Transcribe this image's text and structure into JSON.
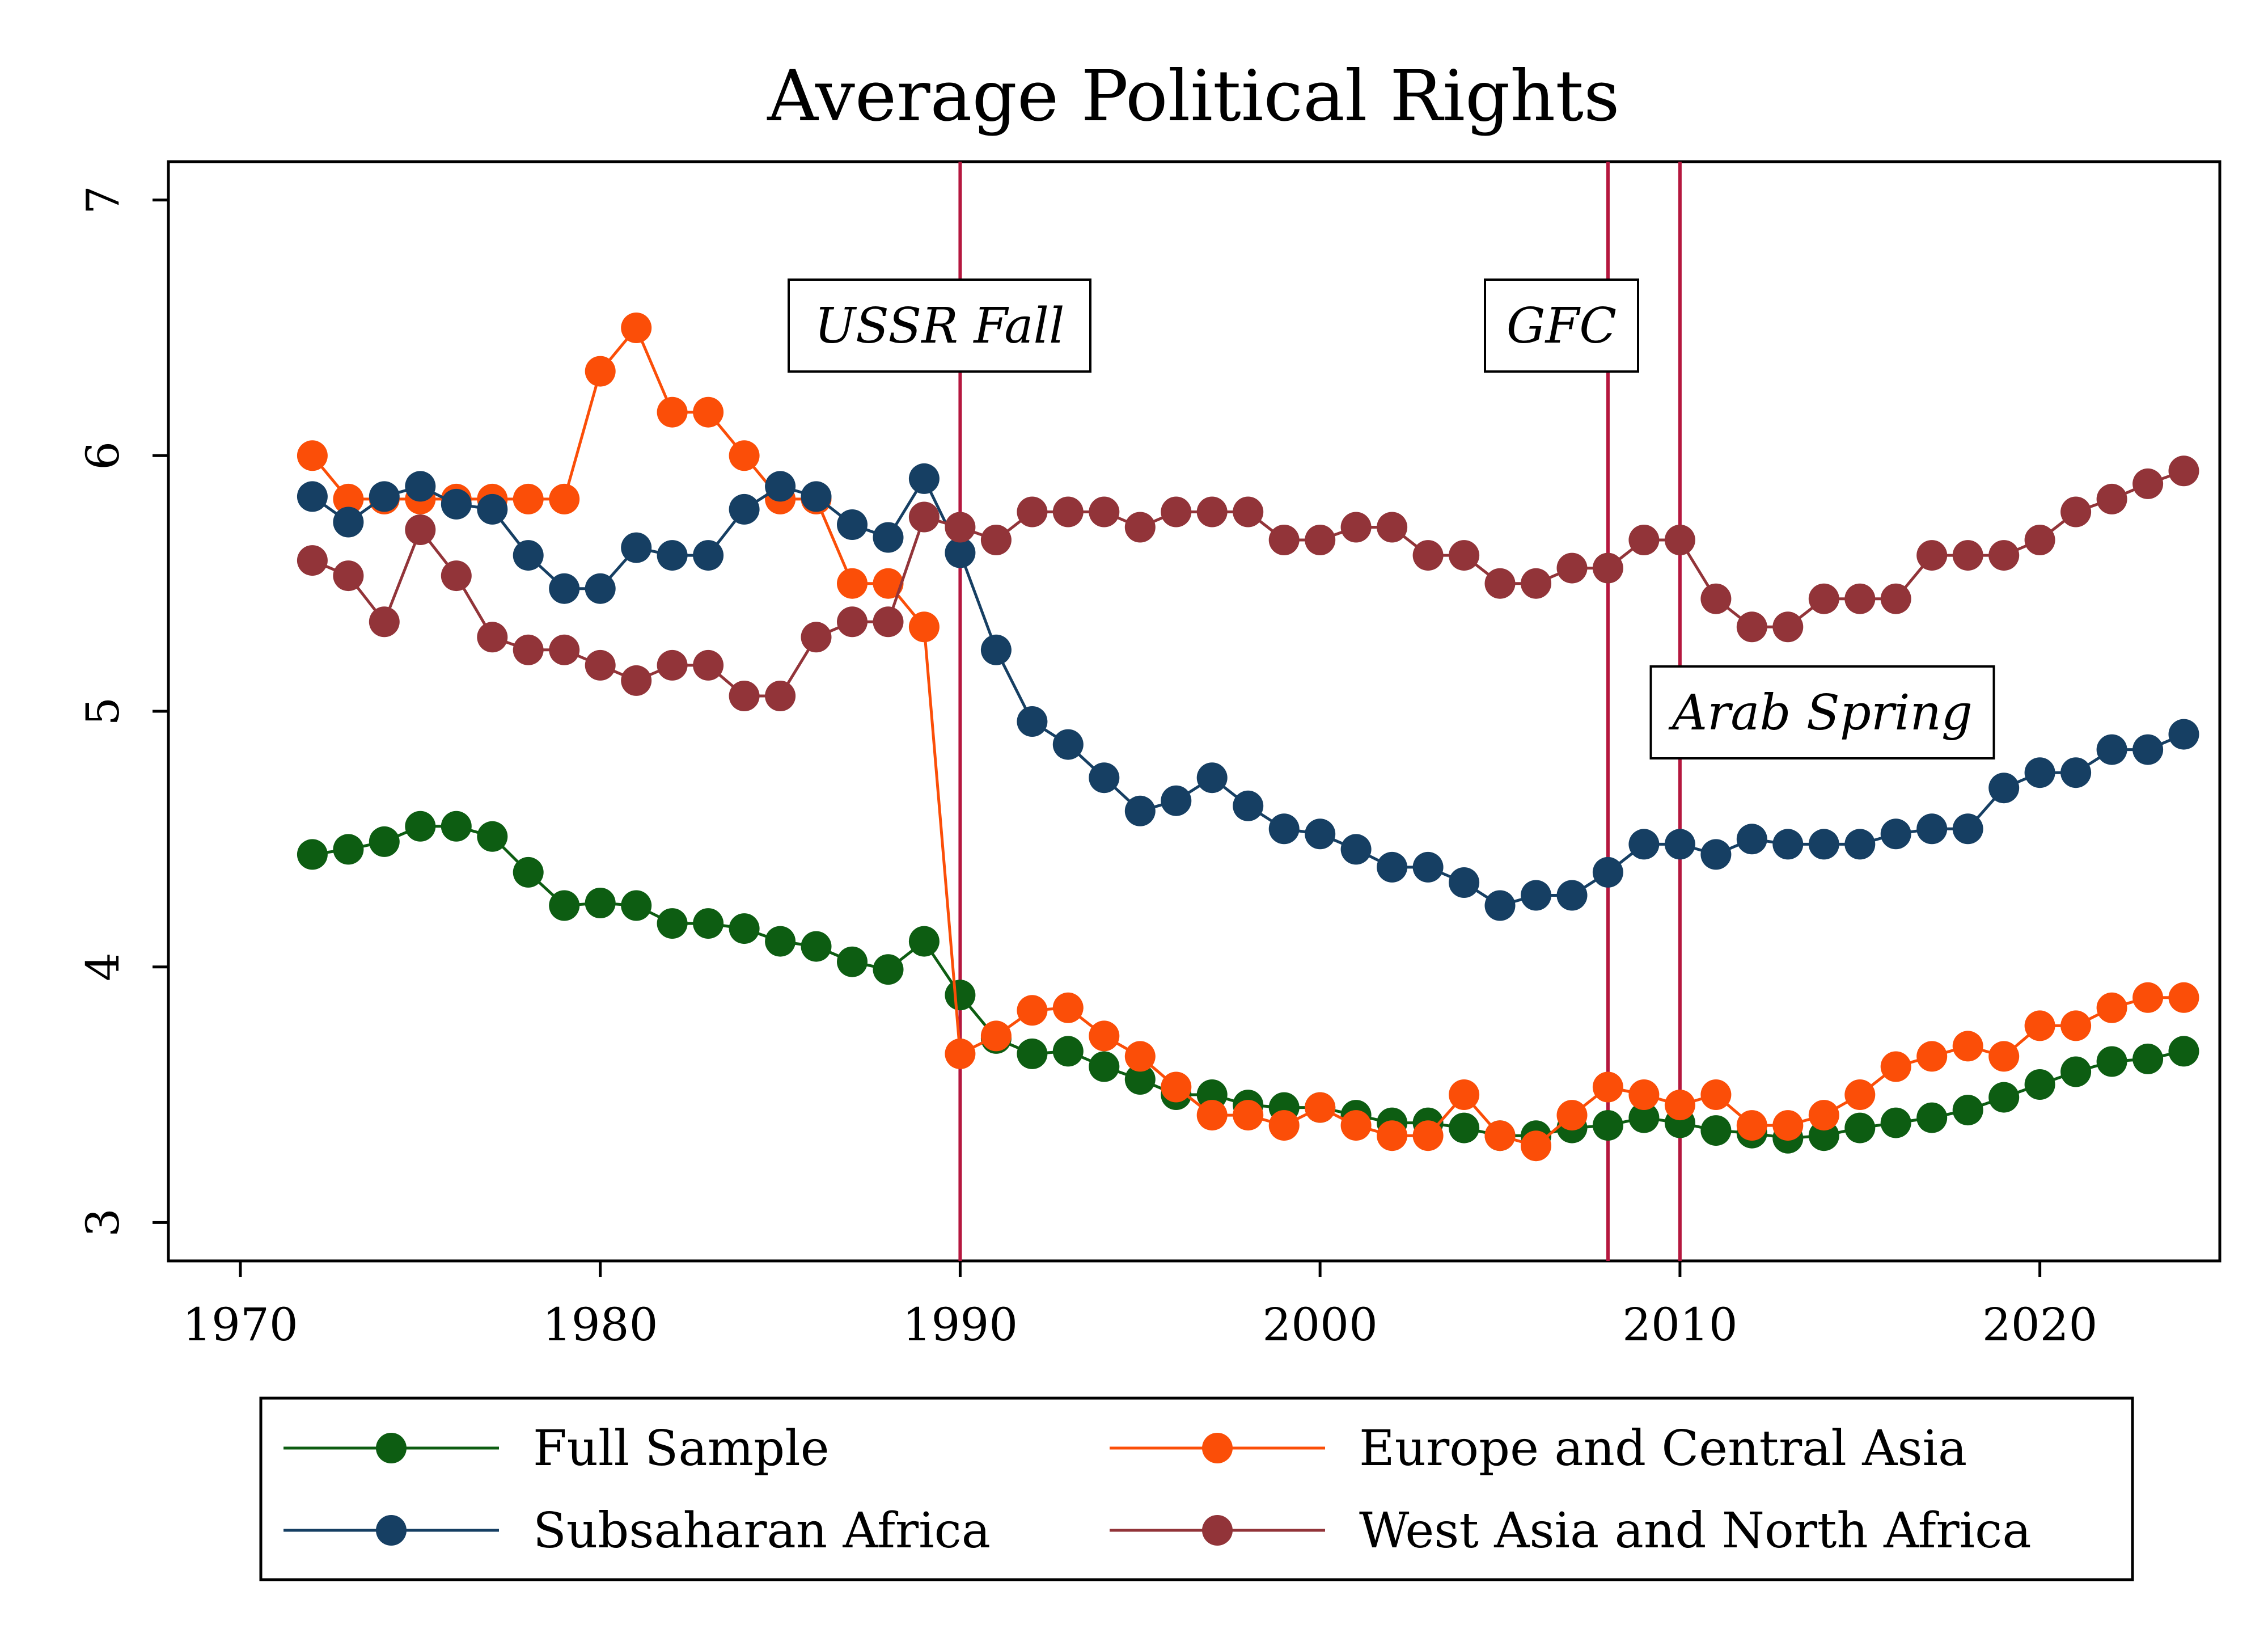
{
  "chart_data": {
    "type": "line",
    "title": "Average Political Rights",
    "xlabel": "",
    "ylabel": "",
    "xlim": [
      1968,
      2025
    ],
    "ylim": [
      2.85,
      7.15
    ],
    "xticks": [
      1970,
      1980,
      1990,
      2000,
      2010,
      2020
    ],
    "yticks": [
      3,
      4,
      5,
      6,
      7
    ],
    "grid": false,
    "legend_position": "bottom",
    "events": [
      {
        "label": "USSR Fall",
        "x": 1990,
        "color": "#b5173e"
      },
      {
        "label": "GFC",
        "x": 2008,
        "color": "#b5173e"
      },
      {
        "label": "Arab Spring",
        "x": 2010,
        "color": "#b5173e"
      }
    ],
    "x": [
      1972,
      1973,
      1974,
      1975,
      1976,
      1977,
      1978,
      1979,
      1980,
      1981,
      1982,
      1983,
      1984,
      1985,
      1986,
      1987,
      1988,
      1989,
      1990,
      1991,
      1992,
      1993,
      1994,
      1995,
      1996,
      1997,
      1998,
      1999,
      2000,
      2001,
      2002,
      2003,
      2004,
      2005,
      2006,
      2007,
      2008,
      2009,
      2010,
      2011,
      2012,
      2013,
      2014,
      2015,
      2016,
      2017,
      2018,
      2019,
      2020,
      2021,
      2022,
      2023,
      2024
    ],
    "series": [
      {
        "name": "Full Sample",
        "color": "#0d5d12",
        "values": [
          4.44,
          4.46,
          4.49,
          4.55,
          4.55,
          4.51,
          4.37,
          4.24,
          4.25,
          4.24,
          4.17,
          4.17,
          4.15,
          4.1,
          4.08,
          4.02,
          3.99,
          4.1,
          3.89,
          3.72,
          3.66,
          3.67,
          3.61,
          3.56,
          3.5,
          3.5,
          3.46,
          3.45,
          3.45,
          3.42,
          3.39,
          3.39,
          3.37,
          3.34,
          3.34,
          3.37,
          3.38,
          3.41,
          3.39,
          3.36,
          3.35,
          3.33,
          3.34,
          3.37,
          3.39,
          3.41,
          3.44,
          3.49,
          3.54,
          3.59,
          3.63,
          3.64,
          3.67
        ]
      },
      {
        "name": "Europe and Central Asia",
        "color": "#fb4e08",
        "values": [
          6.0,
          5.83,
          5.83,
          5.83,
          5.83,
          5.83,
          5.83,
          5.83,
          6.33,
          6.5,
          6.17,
          6.17,
          6.0,
          5.83,
          5.83,
          5.5,
          5.5,
          5.33,
          3.66,
          3.73,
          3.83,
          3.84,
          3.73,
          3.65,
          3.53,
          3.42,
          3.42,
          3.38,
          3.45,
          3.38,
          3.34,
          3.34,
          3.5,
          3.34,
          3.3,
          3.42,
          3.53,
          3.5,
          3.46,
          3.5,
          3.38,
          3.38,
          3.42,
          3.5,
          3.61,
          3.65,
          3.69,
          3.65,
          3.77,
          3.77,
          3.84,
          3.88,
          3.88
        ]
      },
      {
        "name": "Subsaharan Africa",
        "color": "#163f63",
        "values": [
          5.84,
          5.74,
          5.84,
          5.88,
          5.81,
          5.79,
          5.61,
          5.48,
          5.48,
          5.64,
          5.61,
          5.61,
          5.79,
          5.88,
          5.84,
          5.73,
          5.68,
          5.91,
          5.62,
          5.24,
          4.96,
          4.87,
          4.74,
          4.61,
          4.65,
          4.74,
          4.63,
          4.54,
          4.52,
          4.46,
          4.39,
          4.39,
          4.33,
          4.24,
          4.28,
          4.28,
          4.37,
          4.48,
          4.48,
          4.44,
          4.5,
          4.48,
          4.48,
          4.48,
          4.52,
          4.54,
          4.54,
          4.7,
          4.76,
          4.76,
          4.85,
          4.85,
          4.91
        ]
      },
      {
        "name": "West Asia and North Africa",
        "color": "#923439",
        "values": [
          5.59,
          5.53,
          5.35,
          5.71,
          5.53,
          5.29,
          5.24,
          5.24,
          5.18,
          5.12,
          5.18,
          5.18,
          5.06,
          5.06,
          5.29,
          5.35,
          5.35,
          5.76,
          5.72,
          5.67,
          5.78,
          5.78,
          5.78,
          5.72,
          5.78,
          5.78,
          5.78,
          5.67,
          5.67,
          5.72,
          5.72,
          5.61,
          5.61,
          5.5,
          5.5,
          5.56,
          5.56,
          5.67,
          5.67,
          5.44,
          5.33,
          5.33,
          5.44,
          5.44,
          5.44,
          5.61,
          5.61,
          5.61,
          5.67,
          5.78,
          5.83,
          5.89,
          5.94
        ]
      }
    ]
  }
}
